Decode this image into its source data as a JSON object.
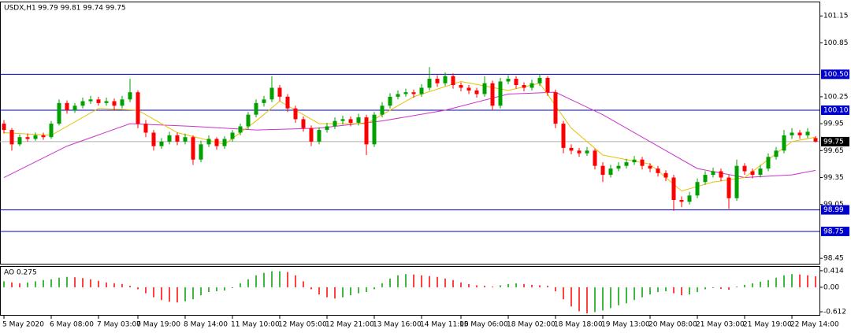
{
  "chart_data": [
    {
      "type": "candlestick",
      "title": "USDX,H1",
      "subtitle": "99.79 99.81 99.74 99.75",
      "up_color": "#00a000",
      "down_color": "#ff0000",
      "candles": [
        [
          99.95,
          99.99,
          99.84,
          99.88
        ],
        [
          99.88,
          99.9,
          99.65,
          99.72
        ],
        [
          99.72,
          99.83,
          99.7,
          99.8
        ],
        [
          99.8,
          99.84,
          99.75,
          99.78
        ],
        [
          99.78,
          99.85,
          99.76,
          99.82
        ],
        [
          99.82,
          99.85,
          99.77,
          99.8
        ],
        [
          99.8,
          99.98,
          99.78,
          99.95
        ],
        [
          99.95,
          100.22,
          99.93,
          100.18
        ],
        [
          100.18,
          100.21,
          100.06,
          100.1
        ],
        [
          100.1,
          100.18,
          100.07,
          100.15
        ],
        [
          100.15,
          100.24,
          100.12,
          100.2
        ],
        [
          100.2,
          100.26,
          100.17,
          100.22
        ],
        [
          100.22,
          100.25,
          100.15,
          100.18
        ],
        [
          100.18,
          100.24,
          100.15,
          100.2
        ],
        [
          100.2,
          100.23,
          100.1,
          100.15
        ],
        [
          100.15,
          100.26,
          100.12,
          100.22
        ],
        [
          100.22,
          100.45,
          100.19,
          100.3
        ],
        [
          100.3,
          100.32,
          99.9,
          99.95
        ],
        [
          99.95,
          99.99,
          99.8,
          99.85
        ],
        [
          99.85,
          99.88,
          99.65,
          99.7
        ],
        [
          99.7,
          99.79,
          99.67,
          99.75
        ],
        [
          99.75,
          99.86,
          99.72,
          99.82
        ],
        [
          99.82,
          99.85,
          99.71,
          99.75
        ],
        [
          99.75,
          99.84,
          99.72,
          99.8
        ],
        [
          99.8,
          99.82,
          99.49,
          99.55
        ],
        [
          99.55,
          99.76,
          99.52,
          99.72
        ],
        [
          99.72,
          99.82,
          99.69,
          99.78
        ],
        [
          99.78,
          99.8,
          99.66,
          99.7
        ],
        [
          99.7,
          99.81,
          99.67,
          99.78
        ],
        [
          99.78,
          99.88,
          99.75,
          99.85
        ],
        [
          99.85,
          99.95,
          99.82,
          99.92
        ],
        [
          99.92,
          100.08,
          99.89,
          100.05
        ],
        [
          100.05,
          100.22,
          100.02,
          100.18
        ],
        [
          100.18,
          100.26,
          100.14,
          100.22
        ],
        [
          100.22,
          100.48,
          100.19,
          100.35
        ],
        [
          100.35,
          100.38,
          100.2,
          100.25
        ],
        [
          100.25,
          100.28,
          100.08,
          100.12
        ],
        [
          100.12,
          100.15,
          99.96,
          100.0
        ],
        [
          100.0,
          100.03,
          99.86,
          99.9
        ],
        [
          99.9,
          99.93,
          99.7,
          99.75
        ],
        [
          99.75,
          99.91,
          99.72,
          99.88
        ],
        [
          99.88,
          99.96,
          99.85,
          99.92
        ],
        [
          99.92,
          100.02,
          99.89,
          99.98
        ],
        [
          99.98,
          100.04,
          99.94,
          100.0
        ],
        [
          100.0,
          100.03,
          99.92,
          99.96
        ],
        [
          99.96,
          100.06,
          99.93,
          100.02
        ],
        [
          100.02,
          100.05,
          99.6,
          99.72
        ],
        [
          99.72,
          100.08,
          99.69,
          100.05
        ],
        [
          100.05,
          100.19,
          100.02,
          100.15
        ],
        [
          100.15,
          100.29,
          100.12,
          100.25
        ],
        [
          100.25,
          100.32,
          100.22,
          100.28
        ],
        [
          100.28,
          100.34,
          100.25,
          100.3
        ],
        [
          100.3,
          100.33,
          100.24,
          100.28
        ],
        [
          100.28,
          100.39,
          100.25,
          100.35
        ],
        [
          100.35,
          100.58,
          100.32,
          100.45
        ],
        [
          100.45,
          100.49,
          100.36,
          100.4
        ],
        [
          100.4,
          100.52,
          100.37,
          100.48
        ],
        [
          100.48,
          100.51,
          100.34,
          100.38
        ],
        [
          100.38,
          100.41,
          100.31,
          100.35
        ],
        [
          100.35,
          100.38,
          100.28,
          100.32
        ],
        [
          100.32,
          100.35,
          100.24,
          100.28
        ],
        [
          100.28,
          100.48,
          100.25,
          100.4
        ],
        [
          100.4,
          100.43,
          100.1,
          100.15
        ],
        [
          100.15,
          100.46,
          100.12,
          100.42
        ],
        [
          100.42,
          100.49,
          100.39,
          100.45
        ],
        [
          100.45,
          100.48,
          100.34,
          100.38
        ],
        [
          100.38,
          100.41,
          100.31,
          100.35
        ],
        [
          100.35,
          100.44,
          100.32,
          100.4
        ],
        [
          100.4,
          100.5,
          100.37,
          100.46
        ],
        [
          100.46,
          100.48,
          100.26,
          100.3
        ],
        [
          100.3,
          100.33,
          99.9,
          99.95
        ],
        [
          99.95,
          99.98,
          99.62,
          99.68
        ],
        [
          99.68,
          99.72,
          99.61,
          99.65
        ],
        [
          99.65,
          99.68,
          99.58,
          99.62
        ],
        [
          99.62,
          99.69,
          99.59,
          99.65
        ],
        [
          99.65,
          99.67,
          99.44,
          99.48
        ],
        [
          99.48,
          99.52,
          99.3,
          99.38
        ],
        [
          99.38,
          99.49,
          99.35,
          99.45
        ],
        [
          99.45,
          99.52,
          99.42,
          99.48
        ],
        [
          99.48,
          99.56,
          99.45,
          99.52
        ],
        [
          99.52,
          99.59,
          99.49,
          99.55
        ],
        [
          99.55,
          99.58,
          99.44,
          99.48
        ],
        [
          99.48,
          99.51,
          99.41,
          99.45
        ],
        [
          99.45,
          99.48,
          99.36,
          99.4
        ],
        [
          99.4,
          99.43,
          99.31,
          99.35
        ],
        [
          99.35,
          99.38,
          98.98,
          99.1
        ],
        [
          99.1,
          99.14,
          99.02,
          99.08
        ],
        [
          99.08,
          99.19,
          99.05,
          99.15
        ],
        [
          99.15,
          99.34,
          99.12,
          99.3
        ],
        [
          99.3,
          99.42,
          99.27,
          99.38
        ],
        [
          99.38,
          99.46,
          99.35,
          99.42
        ],
        [
          99.42,
          99.45,
          99.31,
          99.35
        ],
        [
          99.35,
          99.38,
          99.0,
          99.12
        ],
        [
          99.12,
          99.55,
          99.09,
          99.48
        ],
        [
          99.48,
          99.51,
          99.38,
          99.42
        ],
        [
          99.42,
          99.45,
          99.34,
          99.38
        ],
        [
          99.38,
          99.49,
          99.35,
          99.45
        ],
        [
          99.45,
          99.62,
          99.42,
          99.58
        ],
        [
          99.58,
          99.69,
          99.55,
          99.65
        ],
        [
          99.65,
          99.88,
          99.62,
          99.82
        ],
        [
          99.82,
          99.9,
          99.78,
          99.85
        ],
        [
          99.85,
          99.88,
          99.78,
          99.82
        ],
        [
          99.82,
          99.9,
          99.79,
          99.86
        ],
        [
          99.79,
          99.81,
          99.74,
          99.75
        ]
      ],
      "lines": [
        {
          "color": "#cc33cc",
          "x": [
            0,
            8,
            16,
            24,
            32,
            40,
            48,
            56,
            64,
            70,
            76,
            82,
            88,
            94,
            100,
            103
          ],
          "values": [
            99.35,
            99.7,
            99.95,
            99.92,
            99.88,
            99.9,
            99.98,
            100.1,
            100.28,
            100.3,
            100.05,
            99.75,
            99.45,
            99.35,
            99.38,
            99.43
          ]
        },
        {
          "color": "#e6c200",
          "x": [
            0,
            6,
            12,
            17,
            22,
            28,
            32,
            35,
            40,
            46,
            52,
            58,
            64,
            68,
            72,
            76,
            82,
            86,
            90,
            94,
            100,
            103
          ],
          "values": [
            99.85,
            99.82,
            100.12,
            100.1,
            99.85,
            99.72,
            99.98,
            100.2,
            99.95,
            99.95,
            100.25,
            100.42,
            100.32,
            100.4,
            99.9,
            99.6,
            99.5,
            99.2,
            99.3,
            99.35,
            99.75,
            99.8
          ]
        }
      ],
      "levels": [
        {
          "value": 100.5,
          "label": "100.50"
        },
        {
          "value": 100.1,
          "label": "100.10"
        },
        98.99,
        98.75
      ],
      "level_color": "#0000cc",
      "last_price": 99.75,
      "ylim": [
        98.39,
        101.31
      ],
      "yticks": [
        101.15,
        100.85,
        100.25,
        99.95,
        99.65,
        99.35,
        99.05,
        98.45
      ],
      "xticks": [
        {
          "value": 0,
          "label": "5 May 2020"
        },
        {
          "value": 6,
          "label": "6 May 08:00"
        },
        {
          "value": 12,
          "label": "7 May 03:00"
        },
        {
          "value": 17,
          "label": "7 May 19:00"
        },
        {
          "value": 23,
          "label": "8 May 14:00"
        },
        {
          "value": 29,
          "label": "11 May 10:00"
        },
        {
          "value": 35,
          "label": "12 May 05:00"
        },
        {
          "value": 41,
          "label": "12 May 21:00"
        },
        {
          "value": 47,
          "label": "13 May 16:00"
        },
        {
          "value": 53,
          "label": "14 May 11:00"
        },
        {
          "value": 58,
          "label": "15 May 06:00"
        },
        {
          "value": 64,
          "label": "18 May 02:00"
        },
        {
          "value": 70,
          "label": "18 May 18:00"
        },
        {
          "value": 76,
          "label": "19 May 13:00"
        },
        {
          "value": 82,
          "label": "20 May 08:00"
        },
        {
          "value": 88,
          "label": "21 May 03:00"
        },
        {
          "value": 94,
          "label": "21 May 19:00"
        },
        {
          "value": 100,
          "label": "22 May 14:00"
        }
      ]
    },
    {
      "type": "bar",
      "title": "AO 0.275",
      "up_color": "#00a000",
      "down_color": "#ff0000",
      "values": [
        0.15,
        0.12,
        0.1,
        0.12,
        0.15,
        0.18,
        0.2,
        0.24,
        0.26,
        0.25,
        0.23,
        0.2,
        0.16,
        0.12,
        0.1,
        0.08,
        0.04,
        -0.05,
        -0.15,
        -0.25,
        -0.32,
        -0.36,
        -0.38,
        -0.35,
        -0.3,
        -0.2,
        -0.12,
        -0.1,
        -0.08,
        -0.02,
        0.1,
        0.2,
        0.3,
        0.36,
        0.4,
        0.4,
        0.38,
        0.3,
        0.15,
        -0.05,
        -0.18,
        -0.25,
        -0.28,
        -0.25,
        -0.2,
        -0.15,
        -0.12,
        -0.05,
        0.1,
        0.22,
        0.3,
        0.33,
        0.32,
        0.3,
        0.28,
        0.26,
        0.22,
        0.18,
        0.12,
        0.08,
        0.05,
        0.04,
        0.02,
        0.05,
        0.08,
        0.1,
        0.08,
        0.06,
        0.05,
        0.04,
        -0.1,
        -0.3,
        -0.48,
        -0.6,
        -0.65,
        -0.62,
        -0.58,
        -0.52,
        -0.45,
        -0.4,
        -0.32,
        -0.25,
        -0.18,
        -0.12,
        -0.1,
        -0.15,
        -0.2,
        -0.18,
        -0.12,
        -0.05,
        -0.02,
        -0.04,
        -0.06,
        0.02,
        0.06,
        0.1,
        0.14,
        0.18,
        0.24,
        0.3,
        0.33,
        0.32,
        0.3,
        0.275
      ],
      "ylim": [
        -0.69,
        0.53
      ],
      "yticks": [
        0.414,
        {
          "value": 0,
          "label": "0.00"
        },
        -0.612
      ]
    }
  ]
}
